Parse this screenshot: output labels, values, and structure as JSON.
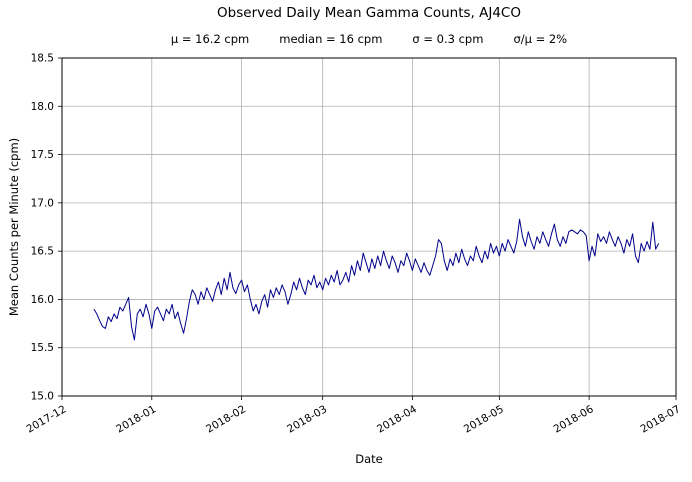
{
  "title": "Observed Daily Mean Gamma Counts, AJ4CO",
  "stats": {
    "mu": "μ = 16.2 cpm",
    "median": "median = 16 cpm",
    "sigma": "σ = 0.3 cpm",
    "ratio": "σ/μ = 2%"
  },
  "chart_data": {
    "type": "line",
    "title": "Observed Daily Mean Gamma Counts, AJ4CO",
    "xlabel": "Date",
    "ylabel": "Mean Counts per Minute (cpm)",
    "line_color": "#00008b",
    "grid_color": "#b0b0b0",
    "grid": true,
    "legend": "none",
    "x_axis": {
      "unit": "days since 2017-12-01",
      "range": [
        0,
        212
      ],
      "ticks": [
        {
          "pos": 0,
          "label": "2017-12"
        },
        {
          "pos": 31,
          "label": "2018-01"
        },
        {
          "pos": 62,
          "label": "2018-02"
        },
        {
          "pos": 90,
          "label": "2018-03"
        },
        {
          "pos": 121,
          "label": "2018-04"
        },
        {
          "pos": 151,
          "label": "2018-05"
        },
        {
          "pos": 182,
          "label": "2018-06"
        },
        {
          "pos": 212,
          "label": "2018-07"
        }
      ]
    },
    "y_axis": {
      "range": [
        15.0,
        18.5
      ],
      "tick_step": 0.5,
      "ticks": [
        "15.0",
        "15.5",
        "16.0",
        "16.5",
        "17.0",
        "17.5",
        "18.0",
        "18.5"
      ]
    },
    "series": [
      {
        "name": "daily_mean_gamma_cpm",
        "start_day": 11,
        "step_days": 1,
        "values": [
          15.9,
          15.85,
          15.78,
          15.72,
          15.7,
          15.82,
          15.77,
          15.85,
          15.8,
          15.92,
          15.88,
          15.95,
          16.02,
          15.72,
          15.58,
          15.85,
          15.9,
          15.82,
          15.95,
          15.85,
          15.7,
          15.88,
          15.92,
          15.85,
          15.78,
          15.9,
          15.85,
          15.95,
          15.8,
          15.87,
          15.75,
          15.65,
          15.8,
          15.98,
          16.1,
          16.05,
          15.95,
          16.08,
          16.0,
          16.12,
          16.05,
          15.98,
          16.1,
          16.18,
          16.05,
          16.22,
          16.1,
          16.28,
          16.12,
          16.06,
          16.15,
          16.2,
          16.08,
          16.15,
          16.0,
          15.88,
          15.95,
          15.85,
          15.98,
          16.05,
          15.92,
          16.1,
          16.02,
          16.12,
          16.05,
          16.15,
          16.08,
          15.95,
          16.05,
          16.18,
          16.1,
          16.22,
          16.12,
          16.05,
          16.2,
          16.15,
          16.25,
          16.12,
          16.18,
          16.1,
          16.22,
          16.15,
          16.25,
          16.18,
          16.3,
          16.15,
          16.2,
          16.28,
          16.18,
          16.35,
          16.25,
          16.4,
          16.3,
          16.48,
          16.38,
          16.28,
          16.42,
          16.32,
          16.45,
          16.35,
          16.5,
          16.4,
          16.32,
          16.45,
          16.38,
          16.28,
          16.4,
          16.35,
          16.48,
          16.4,
          16.3,
          16.42,
          16.35,
          16.28,
          16.38,
          16.3,
          16.25,
          16.35,
          16.45,
          16.62,
          16.58,
          16.4,
          16.3,
          16.42,
          16.35,
          16.48,
          16.38,
          16.52,
          16.42,
          16.35,
          16.45,
          16.4,
          16.55,
          16.45,
          16.38,
          16.5,
          16.42,
          16.58,
          16.48,
          16.55,
          16.45,
          16.58,
          16.5,
          16.62,
          16.55,
          16.48,
          16.6,
          16.83,
          16.65,
          16.55,
          16.7,
          16.6,
          16.52,
          16.65,
          16.58,
          16.7,
          16.62,
          16.55,
          16.68,
          16.78,
          16.62,
          16.55,
          16.65,
          16.58,
          16.7,
          16.72,
          16.7,
          16.68,
          16.72,
          16.7,
          16.66,
          16.4,
          16.55,
          16.45,
          16.68,
          16.6,
          16.65,
          16.58,
          16.7,
          16.62,
          16.55,
          16.65,
          16.58,
          16.48,
          16.62,
          16.55,
          16.68,
          16.45,
          16.38,
          16.58,
          16.5,
          16.6,
          16.52,
          16.8,
          16.52,
          16.58
        ]
      }
    ]
  }
}
